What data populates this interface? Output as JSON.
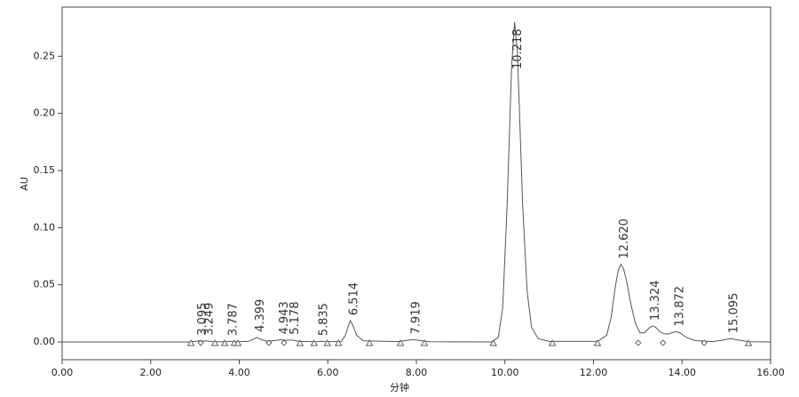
{
  "chart_data": {
    "type": "line",
    "xlabel": "分钟",
    "ylabel": "AU",
    "xlim": [
      0,
      16
    ],
    "xticks": [
      {
        "value": 0,
        "label": "0.00"
      },
      {
        "value": 2,
        "label": "2.00"
      },
      {
        "value": 4,
        "label": "4.00"
      },
      {
        "value": 6,
        "label": "6.00"
      },
      {
        "value": 8,
        "label": "8.00"
      },
      {
        "value": 10,
        "label": "10.00"
      },
      {
        "value": 12,
        "label": "12.00"
      },
      {
        "value": 14,
        "label": "14.00"
      },
      {
        "value": 16,
        "label": "16.00"
      }
    ],
    "ylim": [
      -0.0155,
      0.293
    ],
    "yticks": [
      {
        "value": 0,
        "label": "0.00"
      },
      {
        "value": 0.05,
        "label": "0.05"
      },
      {
        "value": 0.1,
        "label": "0.10"
      },
      {
        "value": 0.15,
        "label": "0.15"
      },
      {
        "value": 0.2,
        "label": "0.20"
      },
      {
        "value": 0.25,
        "label": "0.25"
      }
    ],
    "series": [
      {
        "color": "#555555",
        "x": [
          0,
          2.9,
          3.05,
          3.1,
          3.2,
          3.25,
          3.4,
          3.7,
          3.79,
          3.9,
          4.2,
          4.3,
          4.4,
          4.5,
          4.65,
          4.85,
          4.94,
          5.05,
          5.18,
          5.35,
          5.75,
          5.84,
          5.95,
          6.3,
          6.4,
          6.46,
          6.51,
          6.57,
          6.65,
          6.8,
          7.6,
          7.8,
          7.92,
          8.05,
          8.3,
          9.7,
          9.85,
          9.95,
          10.05,
          10.1,
          10.15,
          10.218,
          10.28,
          10.33,
          10.4,
          10.5,
          10.6,
          10.75,
          11.0,
          12.1,
          12.3,
          12.4,
          12.5,
          12.56,
          12.62,
          12.68,
          12.75,
          12.85,
          12.95,
          13.05,
          13.15,
          13.25,
          13.324,
          13.4,
          13.5,
          13.6,
          13.7,
          13.8,
          13.872,
          13.95,
          14.1,
          14.3,
          14.7,
          14.9,
          15.095,
          15.3,
          15.5,
          16
        ],
        "values": [
          0,
          0,
          0.0008,
          0.001,
          0.0007,
          0.001,
          0.0002,
          0.0002,
          0.0006,
          0.0002,
          0.0005,
          0.002,
          0.004,
          0.002,
          0.0005,
          0.0015,
          0.002,
          0.0015,
          0.0018,
          0.0005,
          0.0002,
          0.0006,
          0.0002,
          0.0005,
          0.006,
          0.014,
          0.0186,
          0.014,
          0.006,
          0.001,
          0.0003,
          0.0015,
          0.002,
          0.0015,
          0.0002,
          0,
          0.004,
          0.03,
          0.12,
          0.18,
          0.24,
          0.28,
          0.255,
          0.2,
          0.12,
          0.045,
          0.013,
          0.003,
          0.0005,
          0.0005,
          0.006,
          0.022,
          0.05,
          0.063,
          0.068,
          0.064,
          0.053,
          0.032,
          0.016,
          0.008,
          0.008,
          0.012,
          0.014,
          0.013,
          0.009,
          0.007,
          0.007,
          0.0085,
          0.009,
          0.008,
          0.004,
          0.0012,
          0.0003,
          0.0015,
          0.003,
          0.0015,
          0.0002,
          0
        ]
      }
    ],
    "peaks": [
      {
        "label": "3.095",
        "x": 3.095,
        "value": 0.001
      },
      {
        "label": "3.249",
        "x": 3.249,
        "value": 0.001
      },
      {
        "label": "3.787",
        "x": 3.787,
        "value": 0.0006
      },
      {
        "label": "4.399",
        "x": 4.399,
        "value": 0.004
      },
      {
        "label": "4.943",
        "x": 4.943,
        "value": 0.002
      },
      {
        "label": "5.178",
        "x": 5.178,
        "value": 0.0018
      },
      {
        "label": "5.835",
        "x": 5.835,
        "value": 0.0006
      },
      {
        "label": "6.514",
        "x": 6.514,
        "value": 0.0186
      },
      {
        "label": "7.919",
        "x": 7.919,
        "value": 0.002
      },
      {
        "label": "10.218",
        "x": 10.218,
        "value": 0.28
      },
      {
        "label": "12.620",
        "x": 12.62,
        "value": 0.068
      },
      {
        "label": "13.324",
        "x": 13.324,
        "value": 0.014
      },
      {
        "label": "13.872",
        "x": 13.872,
        "value": 0.009
      },
      {
        "label": "15.095",
        "x": 15.095,
        "value": 0.003
      }
    ],
    "baseline_markers": [
      {
        "shape": "triangle",
        "x": 2.91
      },
      {
        "shape": "diamond",
        "x": 3.13
      },
      {
        "shape": "triangle",
        "x": 3.45
      },
      {
        "shape": "triangle",
        "x": 3.67
      },
      {
        "shape": "triangle",
        "x": 3.89
      },
      {
        "shape": "triangle",
        "x": 3.97
      },
      {
        "shape": "diamond",
        "x": 4.67
      },
      {
        "shape": "diamond",
        "x": 5.01
      },
      {
        "shape": "triangle",
        "x": 5.37
      },
      {
        "shape": "triangle",
        "x": 5.69
      },
      {
        "shape": "triangle",
        "x": 5.99
      },
      {
        "shape": "triangle",
        "x": 6.24
      },
      {
        "shape": "triangle",
        "x": 6.94
      },
      {
        "shape": "triangle",
        "x": 7.64
      },
      {
        "shape": "triangle",
        "x": 8.18
      },
      {
        "shape": "triangle",
        "x": 9.74
      },
      {
        "shape": "triangle",
        "x": 11.07
      },
      {
        "shape": "triangle",
        "x": 12.09
      },
      {
        "shape": "diamond",
        "x": 13.01
      },
      {
        "shape": "diamond",
        "x": 13.57
      },
      {
        "shape": "diamond",
        "x": 14.5
      },
      {
        "shape": "triangle",
        "x": 15.5
      }
    ]
  }
}
